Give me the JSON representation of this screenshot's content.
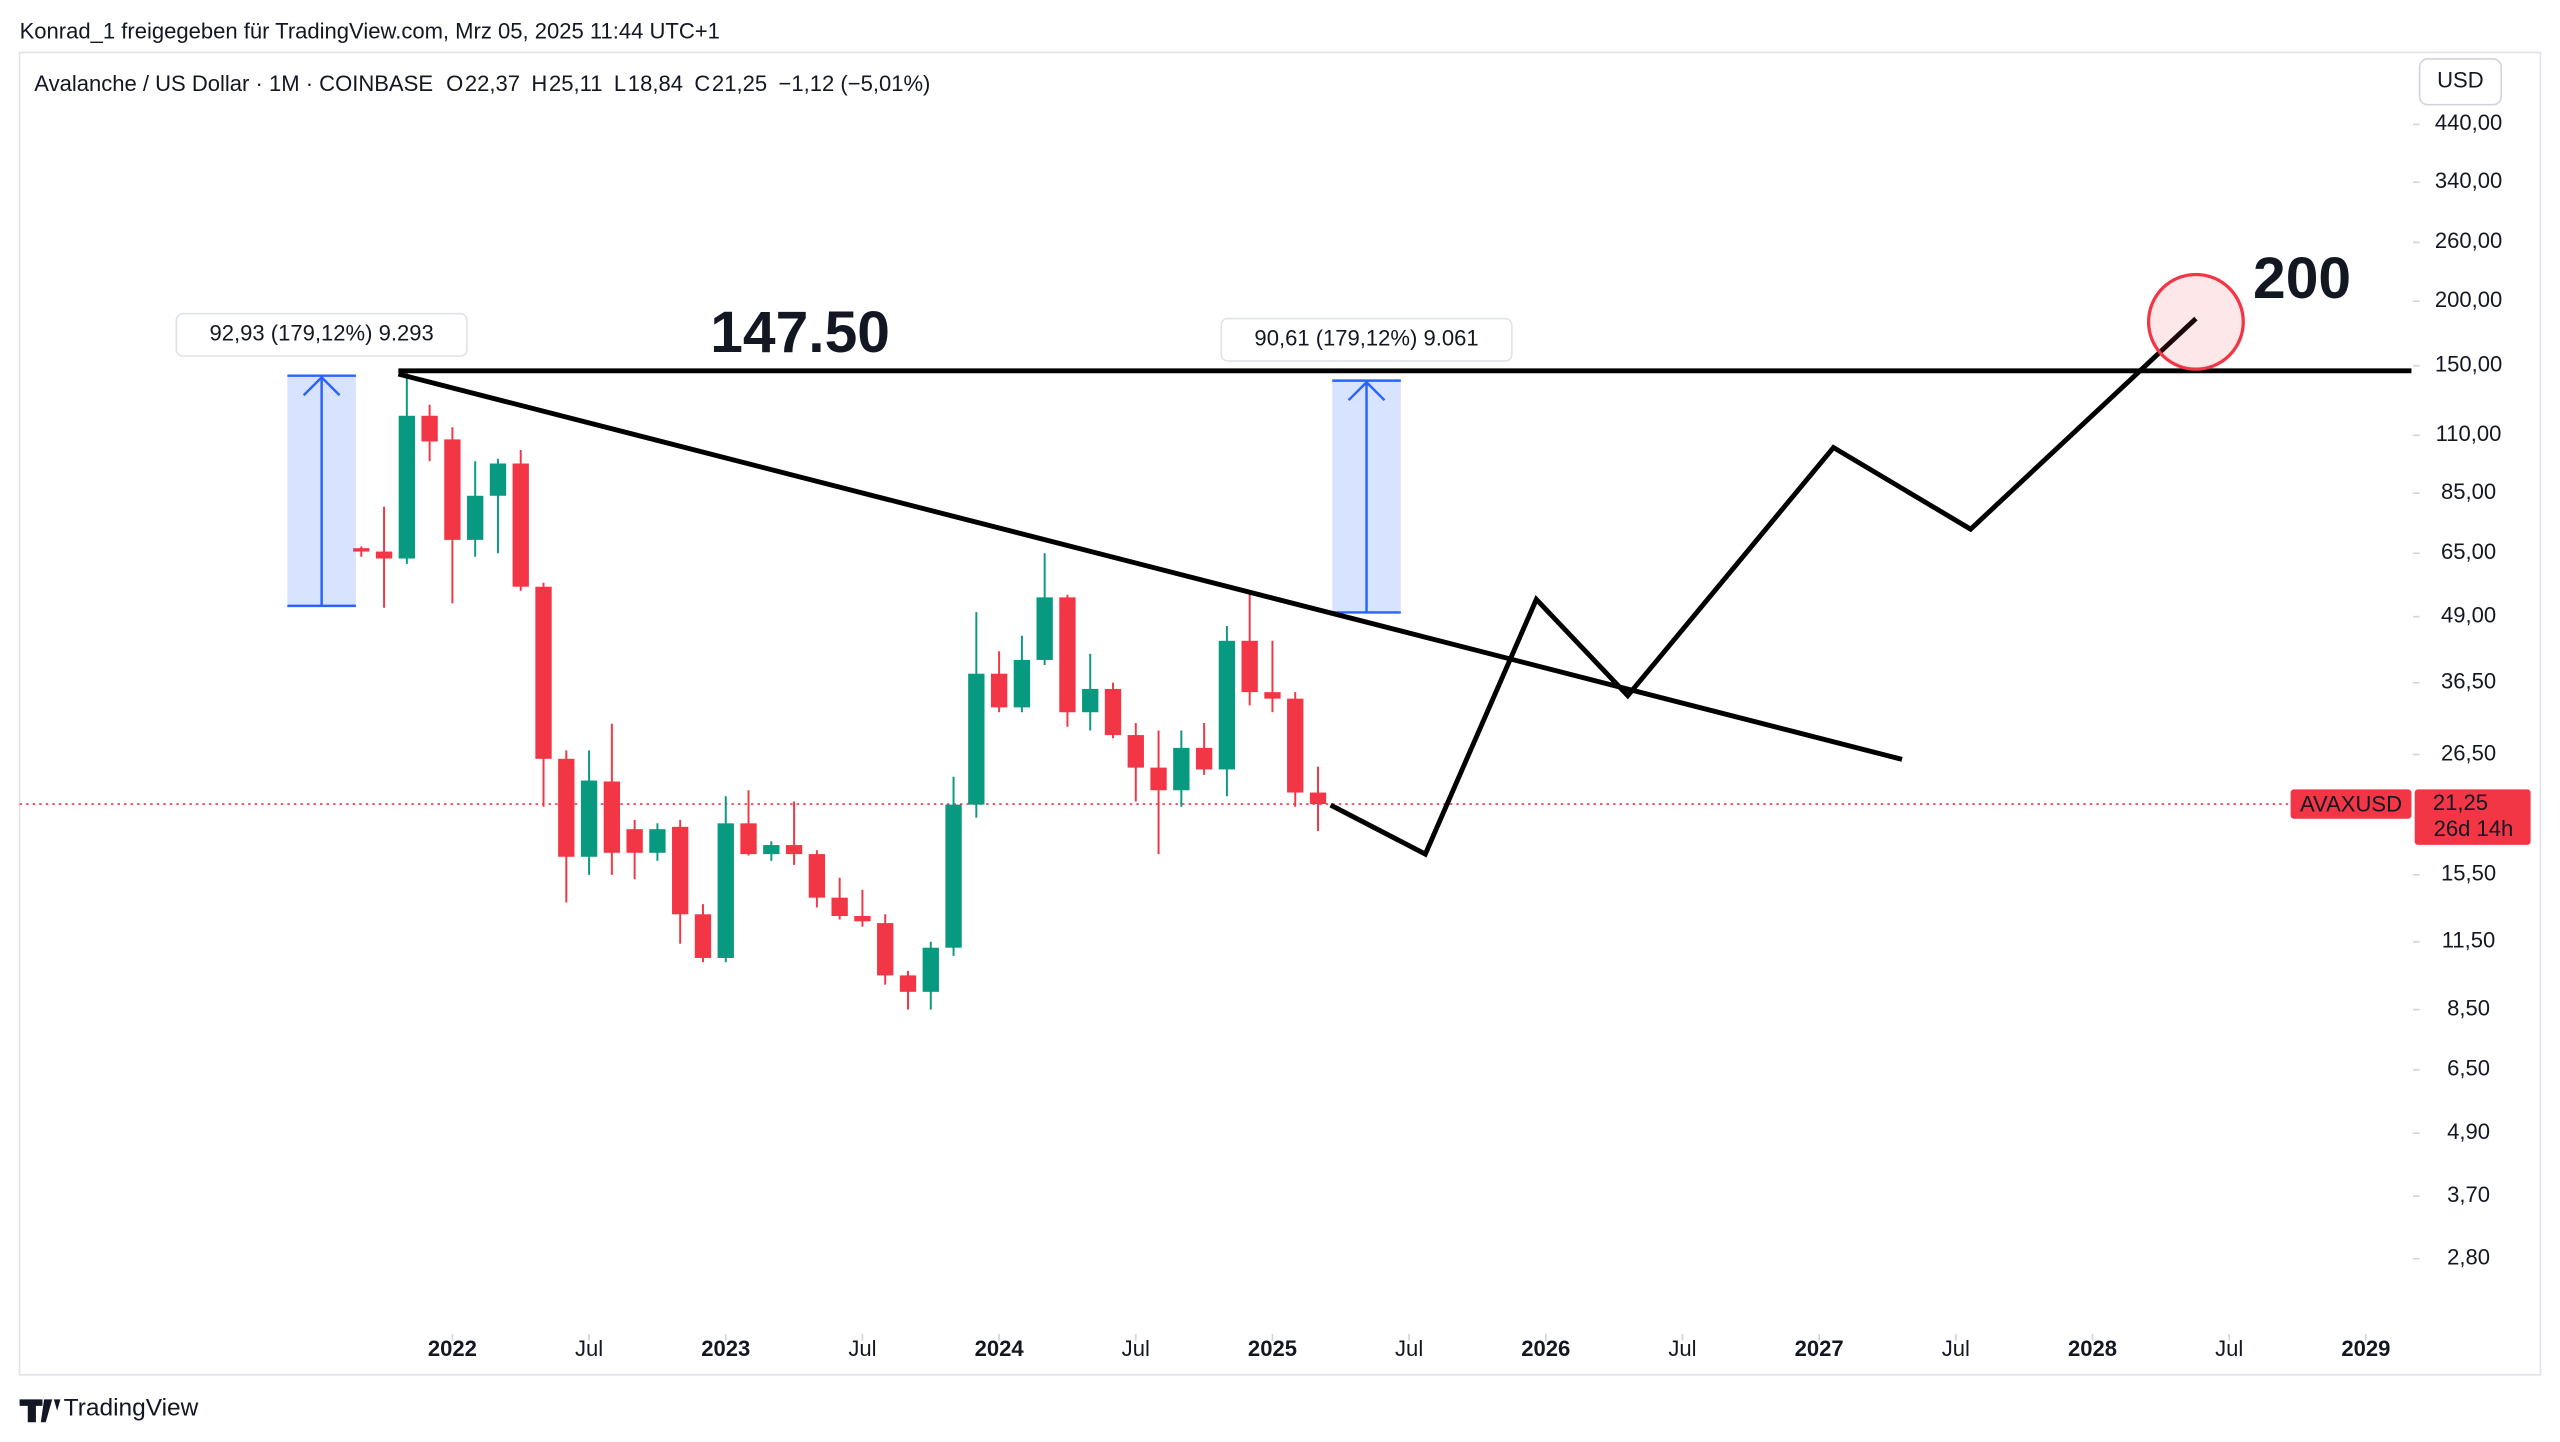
{
  "share_note": "Konrad_1 freigegeben für TradingView.com, Mrz 05, 2025 11:44 UTC+1",
  "footer_logo": "TradingView",
  "chart_data": {
    "type": "candlestick",
    "title": "Avalanche / US Dollar · 1M · COINBASE",
    "ohlc_legend": [
      {
        "key": "O",
        "text": "22,37"
      },
      {
        "key": "H",
        "text": "25,11"
      },
      {
        "key": "L",
        "text": "18,84"
      },
      {
        "key": "C",
        "text": "21,25"
      }
    ],
    "change": "−1,12 (−5,01%)",
    "currency": "USD",
    "up_color": "#089981",
    "down_color": "#f23645",
    "log_scale": true,
    "x": [
      "2021-09",
      "2021-10",
      "2021-11",
      "2021-12",
      "2022-01",
      "2022-02",
      "2022-03",
      "2022-04",
      "2022-05",
      "2022-06",
      "2022-07",
      "2022-08",
      "2022-09",
      "2022-10",
      "2022-11",
      "2022-12",
      "2023-01",
      "2023-02",
      "2023-03",
      "2023-04",
      "2023-05",
      "2023-06",
      "2023-07",
      "2023-08",
      "2023-09",
      "2023-10",
      "2023-11",
      "2023-12",
      "2024-01",
      "2024-02",
      "2024-03",
      "2024-04",
      "2024-05",
      "2024-06",
      "2024-07",
      "2024-08",
      "2024-09",
      "2024-10",
      "2024-11",
      "2024-12",
      "2025-01",
      "2025-02",
      "2025-03"
    ],
    "open": [
      66.5,
      65.5,
      63.5,
      120,
      108,
      69,
      84,
      97,
      56,
      26,
      16.8,
      23.5,
      19,
      17.1,
      19.2,
      13,
      10.7,
      19.5,
      17,
      17.7,
      17,
      14,
      12.9,
      12.5,
      9.9,
      9.2,
      11.2,
      21.2,
      38,
      32.7,
      40.4,
      53.4,
      32,
      35.5,
      28.9,
      25,
      22.6,
      27.3,
      24.8,
      44,
      35,
      34,
      22.37
    ],
    "high": [
      67,
      80,
      146,
      126,
      114,
      98,
      99,
      103,
      57,
      27,
      27,
      30.4,
      19.8,
      19.5,
      19.8,
      13.6,
      22,
      22.6,
      18,
      21.5,
      17.3,
      15.3,
      14.5,
      13,
      10.1,
      11.5,
      24,
      50,
      42,
      45,
      65,
      54,
      41.5,
      36.5,
      30.5,
      29.5,
      29.5,
      30.5,
      47,
      55,
      44,
      35,
      25.11
    ],
    "low": [
      64,
      51,
      62,
      98,
      52,
      64,
      65,
      55,
      21,
      13.7,
      15.5,
      15.5,
      15.2,
      16.5,
      11.4,
      10.5,
      10.5,
      16.9,
      16.5,
      16.2,
      13.4,
      12.7,
      12.3,
      9.5,
      8.5,
      8.5,
      10.8,
      20,
      32,
      32,
      39.5,
      30,
      29.5,
      28.5,
      21.5,
      17,
      21,
      24.2,
      22,
      33,
      32,
      21,
      18.84
    ],
    "close": [
      65.5,
      63.5,
      120,
      107,
      69,
      84,
      97,
      56,
      26,
      16.8,
      23.6,
      17.1,
      17.1,
      19,
      13,
      10.7,
      19.5,
      17,
      17.7,
      17,
      14,
      12.9,
      12.6,
      9.9,
      9.2,
      11.2,
      21.2,
      38,
      32.7,
      40.4,
      53.4,
      32,
      35.5,
      28.9,
      25,
      22.6,
      27.3,
      24.8,
      44,
      35,
      34,
      22.37,
      21.25
    ],
    "xlim": [
      "2020-06",
      "2029-03"
    ],
    "xticks": [
      {
        "value": "2022-01",
        "label": "2022"
      },
      {
        "value": "2022-07",
        "label": "Jul"
      },
      {
        "value": "2023-01",
        "label": "2023"
      },
      {
        "value": "2023-07",
        "label": "Jul"
      },
      {
        "value": "2024-01",
        "label": "2024"
      },
      {
        "value": "2024-07",
        "label": "Jul"
      },
      {
        "value": "2025-01",
        "label": "2025"
      },
      {
        "value": "2025-07",
        "label": "Jul"
      },
      {
        "value": "2026-01",
        "label": "2026"
      },
      {
        "value": "2026-07",
        "label": "Jul"
      },
      {
        "value": "2027-01",
        "label": "2027"
      },
      {
        "value": "2027-07",
        "label": "Jul"
      },
      {
        "value": "2028-01",
        "label": "2028"
      },
      {
        "value": "2028-07",
        "label": "Jul"
      },
      {
        "value": "2029-01",
        "label": "2029"
      }
    ],
    "ylim": [
      2.03,
      572
    ],
    "yticks": [
      {
        "value": 440,
        "label": "440,00"
      },
      {
        "value": 340,
        "label": "340,00"
      },
      {
        "value": 260,
        "label": "260,00"
      },
      {
        "value": 200,
        "label": "200,00"
      },
      {
        "value": 150,
        "label": "150,00"
      },
      {
        "value": 110,
        "label": "110,00"
      },
      {
        "value": 85,
        "label": "85,00"
      },
      {
        "value": 65,
        "label": "65,00"
      },
      {
        "value": 49,
        "label": "49,00"
      },
      {
        "value": 36.5,
        "label": "36,50"
      },
      {
        "value": 26.5,
        "label": "26,50"
      },
      {
        "value": 15.5,
        "label": "15,50"
      },
      {
        "value": 11.5,
        "label": "11,50"
      },
      {
        "value": 8.5,
        "label": "8,50"
      },
      {
        "value": 6.5,
        "label": "6,50"
      },
      {
        "value": 4.9,
        "label": "4,90"
      },
      {
        "value": 3.7,
        "label": "3,70"
      },
      {
        "value": 2.8,
        "label": "2,80"
      }
    ],
    "last_price": {
      "symbol": "AVAXUSD",
      "value": 21.25,
      "label": "21,25",
      "countdown": "26d 14h"
    },
    "annotations": [
      "147.50",
      "200",
      "92,93 (179,12%) 9.293",
      "90,61 (179,12%) 9.061"
    ]
  }
}
